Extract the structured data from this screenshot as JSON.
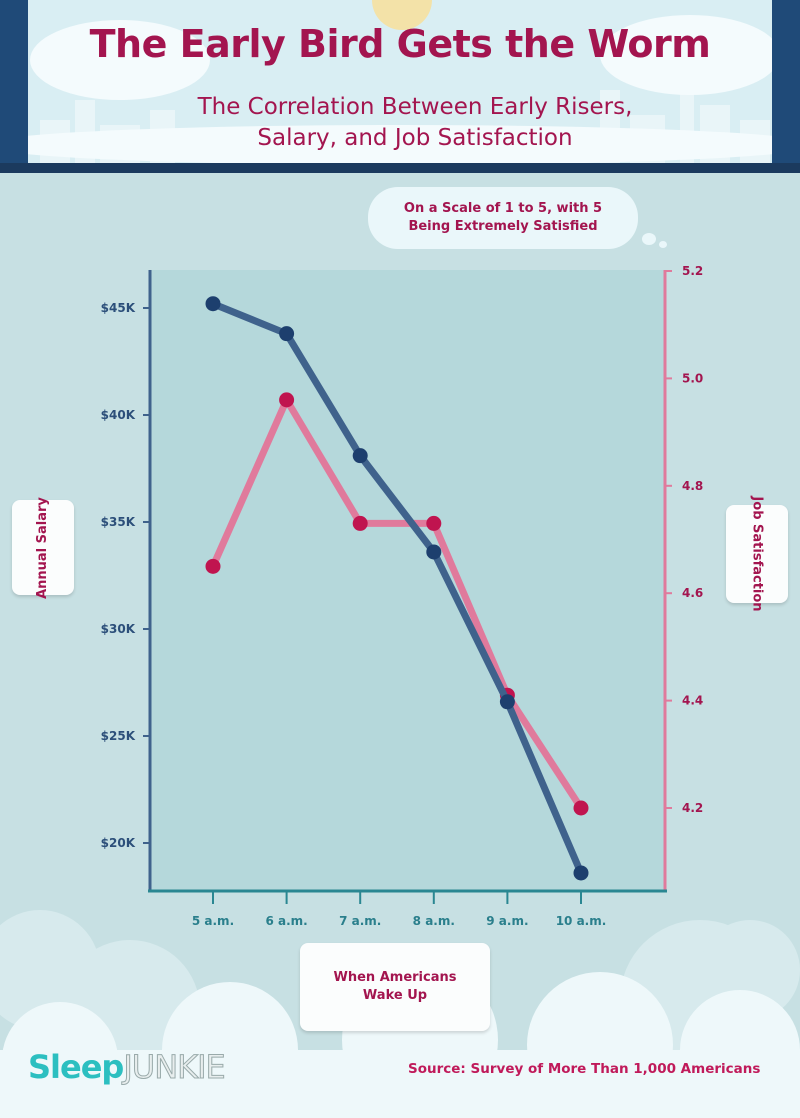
{
  "header": {
    "title": "The Early Bird Gets the Worm",
    "subtitle_line1": "The Correlation Between Early Risers,",
    "subtitle_line2": "Salary, and Job Satisfaction"
  },
  "note": {
    "line1": "On a Scale of 1 to 5, with 5",
    "line2": "Being Extremely Satisfied"
  },
  "footer": {
    "logo_part1": "Sleep",
    "logo_part2": "JUNKIE",
    "source": "Source: Survey of More Than 1,000 Americans"
  },
  "colors": {
    "salary": "#3f628c",
    "salary_dot": "#1d3f6e",
    "satisfaction": "#e07a9c",
    "satisfaction_dot": "#c0144f",
    "text": "#a3154f"
  },
  "chart_data": {
    "type": "line",
    "title": "The Early Bird Gets the Worm",
    "xlabel": "When Americans Wake Up",
    "ylabel": "Annual Salary",
    "y2label": "Job Satisfaction",
    "categories": [
      "5 a.m.",
      "6 a.m.",
      "7 a.m.",
      "8 a.m.",
      "9 a.m.",
      "10 a.m."
    ],
    "y_ticks": [
      45,
      40,
      35,
      30,
      25,
      20
    ],
    "y_tick_labels": [
      "$45K",
      "$40K",
      "$35K",
      "$30K",
      "$25K",
      "$20K"
    ],
    "y2_ticks": [
      "5.2",
      "5.0",
      "4.8",
      "4.6",
      "4.4",
      "4.2"
    ],
    "ylim": [
      20,
      45
    ],
    "y2lim": [
      4.2,
      5.2
    ],
    "series": [
      {
        "name": "Annual Salary",
        "axis": "left",
        "unit": "$K",
        "values": [
          45.2,
          43.8,
          38.1,
          33.6,
          26.6,
          18.6
        ]
      },
      {
        "name": "Job Satisfaction",
        "axis": "right",
        "values": [
          4.65,
          4.96,
          4.73,
          4.73,
          4.41,
          4.2
        ]
      }
    ],
    "grid": false
  }
}
